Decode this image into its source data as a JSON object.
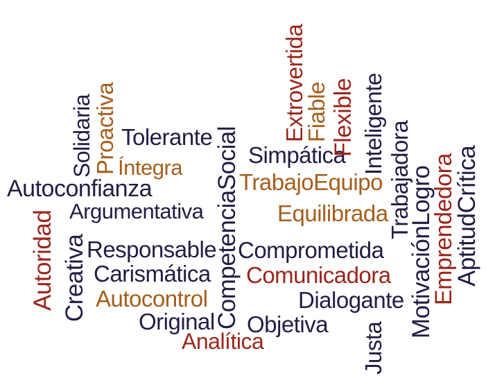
{
  "colors": {
    "navy": "#211d45",
    "maroon": "#9a261c",
    "orange": "#a45e1c"
  },
  "words": [
    {
      "id": "autoconfianza",
      "text": "Autoconfianza",
      "color": "navy"
    },
    {
      "id": "argumentativa",
      "text": "Argumentativa",
      "color": "navy"
    },
    {
      "id": "tolerante",
      "text": "Tolerante",
      "color": "navy"
    },
    {
      "id": "integra",
      "text": "Íntegra",
      "color": "orange"
    },
    {
      "id": "responsable",
      "text": "Responsable",
      "color": "navy"
    },
    {
      "id": "carismatica",
      "text": "Carismática",
      "color": "navy"
    },
    {
      "id": "autocontrol",
      "text": "Autocontrol",
      "color": "orange"
    },
    {
      "id": "original",
      "text": "Original",
      "color": "navy"
    },
    {
      "id": "analitica",
      "text": "Analítica",
      "color": "maroon"
    },
    {
      "id": "objetiva",
      "text": "Objetiva",
      "color": "navy"
    },
    {
      "id": "dialogante",
      "text": "Dialogante",
      "color": "navy"
    },
    {
      "id": "comunicadora",
      "text": "Comunicadora",
      "color": "maroon"
    },
    {
      "id": "comprometida",
      "text": "Comprometida",
      "color": "navy"
    },
    {
      "id": "equilibrada",
      "text": "Equilibrada",
      "color": "orange"
    },
    {
      "id": "trabajoequipo",
      "text": "TrabajoEquipo",
      "color": "orange"
    },
    {
      "id": "simpatica",
      "text": "Simpática",
      "color": "navy"
    },
    {
      "id": "autoridad",
      "text": "Autoridad",
      "color": "maroon"
    },
    {
      "id": "creativa",
      "text": "Creativa",
      "color": "navy"
    },
    {
      "id": "solidaria",
      "text": "Solidaria",
      "color": "navy"
    },
    {
      "id": "proactiva",
      "text": "Proactiva",
      "color": "orange"
    },
    {
      "id": "competenciasocial",
      "text": "CompetenciaSocial",
      "color": "navy"
    },
    {
      "id": "extrovertida",
      "text": "Extrovertida",
      "color": "maroon"
    },
    {
      "id": "fiable",
      "text": "Fiable",
      "color": "orange"
    },
    {
      "id": "flexible",
      "text": "Flexible",
      "color": "maroon"
    },
    {
      "id": "inteligente",
      "text": "Inteligente",
      "color": "navy"
    },
    {
      "id": "trabajadora",
      "text": "Trabajadora",
      "color": "navy"
    },
    {
      "id": "justa",
      "text": "Justa",
      "color": "navy"
    },
    {
      "id": "motivacionlogro",
      "text": "MotivaciónLogro",
      "color": "navy"
    },
    {
      "id": "emprendedora",
      "text": "Emprendedora",
      "color": "maroon"
    },
    {
      "id": "aptitudcritica",
      "text": "AptitudCrítica",
      "color": "navy"
    }
  ]
}
